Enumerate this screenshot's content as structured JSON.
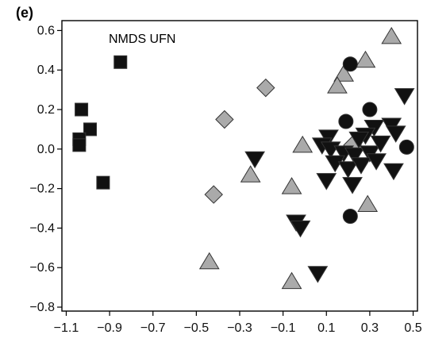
{
  "panel_label": "(e)",
  "chart_data": {
    "type": "scatter",
    "annotation": "NMDS UFN",
    "xlim": [
      -1.12,
      0.52
    ],
    "ylim": [
      -0.82,
      0.65
    ],
    "x_ticks": [
      -1.1,
      -0.9,
      -0.7,
      -0.5,
      -0.3,
      -0.1,
      0.1,
      0.3,
      0.5
    ],
    "x_tick_labels": [
      "−1.1",
      "−0.9",
      "−0.7",
      "−0.5",
      "−0.3",
      "−0.1",
      "0.1",
      "0.3",
      "0.5"
    ],
    "y_ticks": [
      0.6,
      0.4,
      0.2,
      0.0,
      -0.2,
      -0.4,
      -0.6,
      -0.8
    ],
    "y_tick_labels": [
      "0.6",
      "0.4",
      "0.2",
      "0.0",
      "−0.2",
      "−0.4",
      "−0.6",
      "−0.8"
    ],
    "grid": false,
    "legend": "none",
    "series": [
      {
        "marker": "square",
        "color": "#111111",
        "points": [
          {
            "x": -0.85,
            "y": 0.44
          },
          {
            "x": -1.03,
            "y": 0.2
          },
          {
            "x": -0.99,
            "y": 0.1
          },
          {
            "x": -1.04,
            "y": 0.05
          },
          {
            "x": -1.04,
            "y": 0.02
          },
          {
            "x": -0.93,
            "y": -0.17
          }
        ]
      },
      {
        "marker": "diamond",
        "color": "#aaaaaa",
        "points": [
          {
            "x": -0.18,
            "y": 0.31
          },
          {
            "x": -0.37,
            "y": 0.15
          },
          {
            "x": -0.42,
            "y": -0.23
          },
          {
            "x": 0.22,
            "y": 0.02
          }
        ]
      },
      {
        "marker": "triangle-up",
        "color": "#aaaaaa",
        "points": [
          {
            "x": 0.4,
            "y": 0.57
          },
          {
            "x": 0.28,
            "y": 0.45
          },
          {
            "x": 0.18,
            "y": 0.38
          },
          {
            "x": 0.15,
            "y": 0.32
          },
          {
            "x": -0.01,
            "y": 0.02
          },
          {
            "x": -0.25,
            "y": -0.13
          },
          {
            "x": -0.06,
            "y": -0.19
          },
          {
            "x": 0.29,
            "y": -0.28
          },
          {
            "x": -0.44,
            "y": -0.57
          },
          {
            "x": -0.06,
            "y": -0.67
          }
        ]
      },
      {
        "marker": "circle",
        "color": "#111111",
        "points": [
          {
            "x": 0.21,
            "y": 0.43
          },
          {
            "x": 0.3,
            "y": 0.2
          },
          {
            "x": 0.19,
            "y": 0.14
          },
          {
            "x": 0.47,
            "y": 0.01
          },
          {
            "x": 0.21,
            "y": -0.34
          }
        ]
      },
      {
        "marker": "triangle-down",
        "color": "#111111",
        "points": [
          {
            "x": 0.46,
            "y": 0.27
          },
          {
            "x": 0.4,
            "y": 0.12
          },
          {
            "x": 0.42,
            "y": 0.08
          },
          {
            "x": 0.32,
            "y": 0.11
          },
          {
            "x": 0.28,
            "y": 0.07
          },
          {
            "x": 0.25,
            "y": 0.05
          },
          {
            "x": 0.11,
            "y": 0.06
          },
          {
            "x": 0.08,
            "y": 0.02
          },
          {
            "x": 0.12,
            "y": 0.0
          },
          {
            "x": 0.18,
            "y": -0.02
          },
          {
            "x": 0.23,
            "y": -0.03
          },
          {
            "x": 0.3,
            "y": -0.02
          },
          {
            "x": 0.35,
            "y": 0.03
          },
          {
            "x": 0.14,
            "y": -0.07
          },
          {
            "x": 0.2,
            "y": -0.1
          },
          {
            "x": 0.26,
            "y": -0.08
          },
          {
            "x": 0.33,
            "y": -0.06
          },
          {
            "x": 0.1,
            "y": -0.16
          },
          {
            "x": 0.22,
            "y": -0.18
          },
          {
            "x": 0.41,
            "y": -0.11
          },
          {
            "x": -0.23,
            "y": -0.05
          },
          {
            "x": -0.04,
            "y": -0.37
          },
          {
            "x": -0.02,
            "y": -0.4
          },
          {
            "x": 0.06,
            "y": -0.63
          }
        ]
      }
    ]
  }
}
